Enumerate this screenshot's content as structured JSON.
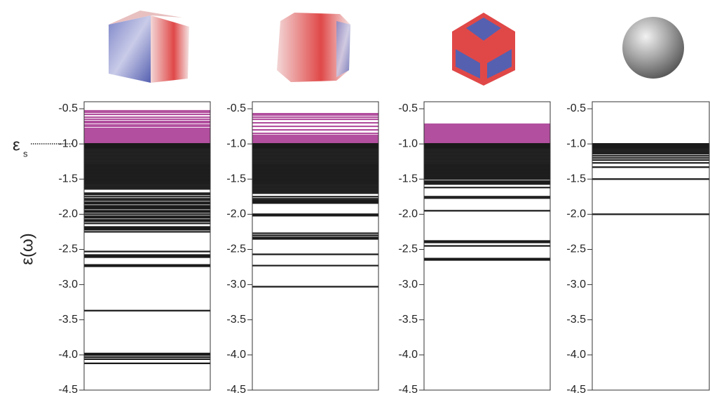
{
  "chart_data": [
    {
      "type": "spectrum",
      "ylim": [
        -4.5,
        -0.4
      ],
      "yticks": [
        -0.5,
        {
          "value": -1,
          "label": "-1.0"
        },
        -1.5,
        {
          "value": -2,
          "label": "-2.0"
        },
        -2.5,
        {
          "value": -3,
          "label": "-3.0"
        },
        -3.5,
        {
          "value": -4,
          "label": "-4.0"
        },
        -4.5
      ],
      "ylabel": "ε(ω)",
      "annotation": {
        "text": "ε",
        "subscript": "s"
      },
      "series": [
        {
          "color": "#b24f9e",
          "values": [
            -0.53,
            -0.55,
            -0.58,
            -0.62,
            -0.65,
            -0.68,
            -0.7,
            -0.73,
            -0.75,
            -0.78,
            -0.8,
            -0.82,
            -0.84,
            -0.86,
            -0.88,
            -0.9,
            -0.92,
            -0.94,
            -0.96,
            -0.98
          ]
        },
        {
          "color": "#1a1a1a",
          "values": [
            -1,
            -1.02,
            -1.04,
            -1.06,
            -1.08,
            -1.1,
            -1.12,
            -1.14,
            -1.16,
            -1.18,
            -1.2,
            -1.22,
            -1.24,
            -1.26,
            -1.28,
            -1.3,
            -1.32,
            -1.34,
            -1.36,
            -1.38,
            -1.4,
            -1.42,
            -1.44,
            -1.46,
            -1.48,
            -1.5,
            -1.52,
            -1.54,
            -1.56,
            -1.58,
            -1.6,
            -1.62,
            -1.64,
            -1.7,
            -1.72,
            -1.75,
            -1.78,
            -1.8,
            -1.83,
            -1.85,
            -1.88,
            -1.9,
            -1.92,
            -1.95,
            -1.97,
            -2,
            -2.03,
            -2.05,
            -2.08,
            -2.1,
            -2.13,
            -2.18,
            -2.2,
            -2.22,
            -2.25,
            -2.53,
            -2.58,
            -2.6,
            -2.61,
            -2.72,
            -2.74,
            -3.37,
            -3.98,
            -4,
            -4.03,
            -4.06,
            -4.12
          ]
        }
      ]
    },
    {
      "type": "spectrum",
      "ylim": [
        -4.5,
        -0.4
      ],
      "yticks": [
        -0.5,
        {
          "value": -1,
          "label": "-1.0"
        },
        -1.5,
        {
          "value": -2,
          "label": "-2.0"
        },
        -2.5,
        {
          "value": -3,
          "label": "-3.0"
        },
        -3.5,
        {
          "value": -4,
          "label": "-4.0"
        },
        -4.5
      ],
      "series": [
        {
          "color": "#b24f9e",
          "values": [
            -0.57,
            -0.59,
            -0.62,
            -0.65,
            -0.7,
            -0.75,
            -0.8,
            -0.85,
            -0.88,
            -0.9,
            -0.92,
            -0.94,
            -0.96,
            -0.98
          ]
        },
        {
          "color": "#1a1a1a",
          "values": [
            -1,
            -1.02,
            -1.04,
            -1.06,
            -1.08,
            -1.1,
            -1.12,
            -1.14,
            -1.16,
            -1.18,
            -1.2,
            -1.22,
            -1.24,
            -1.26,
            -1.28,
            -1.3,
            -1.32,
            -1.34,
            -1.36,
            -1.38,
            -1.4,
            -1.42,
            -1.44,
            -1.46,
            -1.48,
            -1.5,
            -1.52,
            -1.54,
            -1.56,
            -1.58,
            -1.6,
            -1.62,
            -1.64,
            -1.66,
            -1.68,
            -1.7,
            -1.75,
            -1.78,
            -1.8,
            -1.82,
            -1.84,
            -2,
            -2.02,
            -2.27,
            -2.3,
            -2.33,
            -2.35,
            -2.57,
            -2.73,
            -3.03
          ]
        }
      ]
    },
    {
      "type": "spectrum",
      "ylim": [
        -4.5,
        -0.4
      ],
      "yticks": [
        -0.5,
        {
          "value": -1,
          "label": "-1.0"
        },
        -1.5,
        {
          "value": -2,
          "label": "-2.0"
        },
        -2.5,
        {
          "value": -3,
          "label": "-3.0"
        },
        -3.5,
        {
          "value": -4,
          "label": "-4.0"
        },
        -4.5
      ],
      "series": [
        {
          "color": "#b24f9e",
          "values": [
            -0.72,
            -0.74,
            -0.76,
            -0.78,
            -0.8,
            -0.82,
            -0.84,
            -0.86,
            -0.88,
            -0.9,
            -0.92,
            -0.94,
            -0.96,
            -0.98
          ]
        },
        {
          "color": "#1a1a1a",
          "values": [
            -1,
            -1.02,
            -1.04,
            -1.06,
            -1.08,
            -1.1,
            -1.12,
            -1.14,
            -1.16,
            -1.18,
            -1.2,
            -1.22,
            -1.24,
            -1.26,
            -1.28,
            -1.3,
            -1.32,
            -1.34,
            -1.36,
            -1.38,
            -1.4,
            -1.42,
            -1.44,
            -1.46,
            -1.48,
            -1.5,
            -1.53,
            -1.55,
            -1.57,
            -1.62,
            -1.75,
            -1.77,
            -1.95,
            -2.38,
            -2.4,
            -2.45,
            -2.63,
            -2.65
          ]
        }
      ]
    },
    {
      "type": "spectrum",
      "ylim": [
        -4.5,
        -0.4
      ],
      "yticks": [
        -0.5,
        {
          "value": -1,
          "label": "-1.0"
        },
        -1.5,
        {
          "value": -2,
          "label": "-2.0"
        },
        -2.5,
        {
          "value": -3,
          "label": "-3.0"
        },
        -3.5,
        {
          "value": -4,
          "label": "-4.0"
        },
        -4.5
      ],
      "series": [
        {
          "color": "#1a1a1a",
          "values": [
            -1,
            -1.02,
            -1.04,
            -1.06,
            -1.08,
            -1.1,
            -1.12,
            -1.14,
            -1.17,
            -1.2,
            -1.23,
            -1.27,
            -1.33,
            -1.5,
            -2
          ]
        }
      ]
    }
  ]
}
